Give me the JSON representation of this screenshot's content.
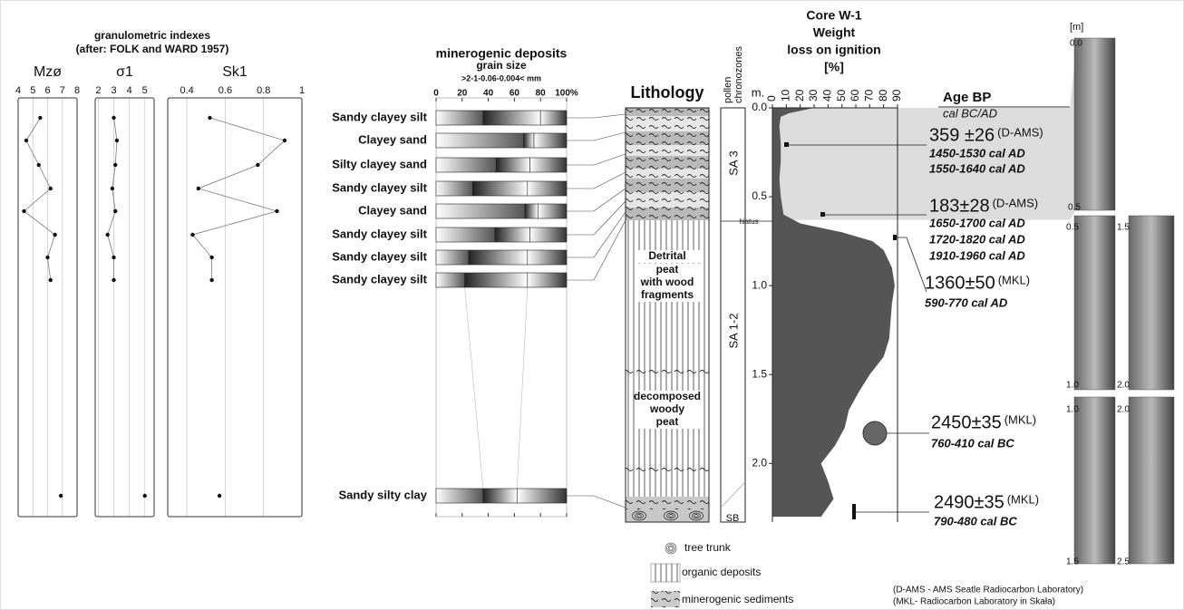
{
  "granulometric": {
    "title": "granulometric indexes",
    "subtitle": "(after: FOLK and WARD 1957)"
  },
  "chart_data": [
    {
      "type": "profile",
      "title": "Mzø",
      "xlim": [
        4,
        8
      ],
      "xticks": [
        4,
        5,
        6,
        7,
        8
      ],
      "values": [
        5.5,
        4.55,
        5.4,
        6.2,
        4.4,
        6.5,
        6.0,
        6.2,
        6.9
      ]
    },
    {
      "type": "profile",
      "title": "σ1",
      "xlim": [
        1.8,
        5.6
      ],
      "xticks": [
        2,
        3,
        4,
        5
      ],
      "values": [
        3.0,
        3.2,
        3.1,
        2.9,
        3.1,
        2.6,
        3.0,
        3.0,
        5.0
      ]
    },
    {
      "type": "profile",
      "title": "Sk1",
      "xlim": [
        0.3,
        1.0
      ],
      "xticks": [
        0.4,
        0.6,
        0.8,
        1
      ],
      "values": [
        0.52,
        0.91,
        0.77,
        0.46,
        0.87,
        0.43,
        0.53,
        0.53,
        0.57
      ]
    },
    {
      "type": "stacked_bar",
      "title": "minerogenic deposits",
      "subtitle": "grain size",
      "x_label": ">2-1-0.06-0.004< mm",
      "categories": [
        "Sandy clayey silt",
        "Clayey sand",
        "Silty clayey sand",
        "Sandy clayey silt",
        "Clayey sand",
        "Sandy clayey silt",
        "Sandy clayey silt",
        "Sandy clayey silt",
        "Sandy silty clay"
      ],
      "series": [
        {
          "color": "#555555",
          "values": [
            36,
            67,
            46,
            28,
            68,
            45,
            25,
            22,
            36
          ]
        },
        {
          "color": "#222222",
          "values": [
            44,
            8,
            26,
            42,
            10,
            27,
            45,
            48,
            26
          ]
        },
        {
          "color": "#333333",
          "values": [
            20,
            25,
            28,
            30,
            22,
            28,
            30,
            30,
            38
          ]
        }
      ],
      "xlim": [
        0,
        100
      ],
      "xticks": [
        0,
        20,
        40,
        60,
        80,
        {
          "value": 100,
          "label": "100%"
        }
      ]
    },
    {
      "type": "area",
      "title": "Core W-1",
      "subtitle": "Weight",
      "y_label": "loss on ignition",
      "y_unit": "[%]",
      "x_label": "m.",
      "color": "#555555",
      "x": [
        0.0,
        0.03,
        0.05,
        0.1,
        0.2,
        0.3,
        0.4,
        0.5,
        0.6,
        0.65,
        0.7,
        0.75,
        0.8,
        0.9,
        1.0,
        1.1,
        1.2,
        1.3,
        1.4,
        1.5,
        1.6,
        1.7,
        1.8,
        1.9,
        2.0,
        2.1,
        2.2,
        2.3
      ],
      "values": [
        30,
        12,
        6,
        5,
        6,
        6,
        5,
        6,
        8,
        20,
        50,
        72,
        80,
        86,
        88,
        86,
        85,
        84,
        80,
        70,
        62,
        55,
        52,
        45,
        35,
        40,
        44,
        35
      ],
      "xlim": [
        0,
        2.33
      ],
      "xticks": [
        {
          "value": 0,
          "label": "0.0"
        },
        {
          "value": 0.5,
          "label": "0.5"
        },
        {
          "value": 1,
          "label": "1.0"
        },
        {
          "value": 1.5,
          "label": "1.5"
        },
        {
          "value": 2,
          "label": "2.0"
        }
      ],
      "ylim": [
        0,
        90
      ],
      "yticks": [
        0,
        10,
        20,
        30,
        40,
        50,
        60,
        70,
        80,
        90
      ]
    }
  ],
  "lithology": {
    "title": "Lithology",
    "units": [
      [
        "Detrital",
        "peat",
        "with wood",
        "fragments"
      ],
      [
        "decomposed",
        "woody",
        "peat"
      ]
    ],
    "legend": [
      "tree trunk",
      "organic deposits",
      "minerogenic sediments"
    ]
  },
  "chronozones": {
    "title": [
      "pollen",
      "chronozones"
    ],
    "zones": [
      "SA 3",
      "SA 1-2",
      "SB"
    ],
    "hiatus": "hiatus"
  },
  "dates": {
    "header": "Age BP",
    "subheader": "cal BC/AD",
    "items": [
      {
        "age": "359 ±26",
        "lab": "(D-AMS)",
        "cal": [
          "1450-1530 cal AD",
          "1550-1640 cal AD"
        ]
      },
      {
        "age": "183±28",
        "lab": "(D-AMS)",
        "cal": [
          "1650-1700 cal AD",
          "1720-1820 cal AD",
          "1910-1960 cal AD"
        ]
      },
      {
        "age": "1360±50",
        "lab": "(MKL)",
        "cal": [
          "590-770 cal AD"
        ]
      },
      {
        "age": "2450±35",
        "lab": "(MKL)",
        "cal": [
          "760-410 cal BC"
        ]
      },
      {
        "age": "2490±35",
        "lab": "(MKL)",
        "cal": [
          "790-480 cal BC"
        ]
      }
    ]
  },
  "core_photos": {
    "unit": "[m]",
    "labels": [
      "0.0",
      "0.5",
      "0.5",
      "1.0",
      "1.5",
      "2.0",
      "1.0",
      "1.5",
      "2.0",
      "2.5"
    ]
  },
  "notes": [
    "(D-AMS - AMS Seatle Radiocarbon Laboratory)",
    "(MKL- Radiocarbon Laboratory in Skała)"
  ]
}
